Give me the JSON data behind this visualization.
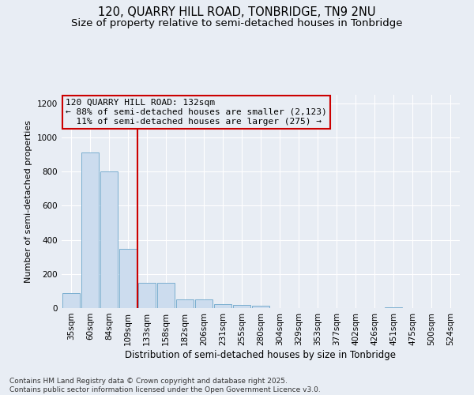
{
  "title_line1": "120, QUARRY HILL ROAD, TONBRIDGE, TN9 2NU",
  "title_line2": "Size of property relative to semi-detached houses in Tonbridge",
  "xlabel": "Distribution of semi-detached houses by size in Tonbridge",
  "ylabel": "Number of semi-detached properties",
  "categories": [
    "35sqm",
    "60sqm",
    "84sqm",
    "109sqm",
    "133sqm",
    "158sqm",
    "182sqm",
    "206sqm",
    "231sqm",
    "255sqm",
    "280sqm",
    "304sqm",
    "329sqm",
    "353sqm",
    "377sqm",
    "402sqm",
    "426sqm",
    "451sqm",
    "475sqm",
    "500sqm",
    "524sqm"
  ],
  "values": [
    90,
    910,
    800,
    345,
    150,
    150,
    50,
    50,
    25,
    20,
    15,
    0,
    0,
    0,
    0,
    0,
    0,
    5,
    0,
    0,
    0
  ],
  "bar_color": "#ccdcee",
  "bar_edge_color": "#7aaed0",
  "red_line_index": 4,
  "red_line_color": "#cc0000",
  "annotation_text_line1": "120 QUARRY HILL ROAD: 132sqm",
  "annotation_text_line2": "← 88% of semi-detached houses are smaller (2,123)",
  "annotation_text_line3": "  11% of semi-detached houses are larger (275) →",
  "annotation_edge_color": "#cc0000",
  "ylim": [
    0,
    1250
  ],
  "yticks": [
    0,
    200,
    400,
    600,
    800,
    1000,
    1200
  ],
  "background_color": "#e8edf4",
  "grid_color": "#ffffff",
  "footnote": "Contains HM Land Registry data © Crown copyright and database right 2025.\nContains public sector information licensed under the Open Government Licence v3.0.",
  "title_fontsize": 10.5,
  "subtitle_fontsize": 9.5,
  "xlabel_fontsize": 8.5,
  "ylabel_fontsize": 8,
  "tick_fontsize": 7.5,
  "annot_fontsize": 8,
  "footnote_fontsize": 6.5
}
